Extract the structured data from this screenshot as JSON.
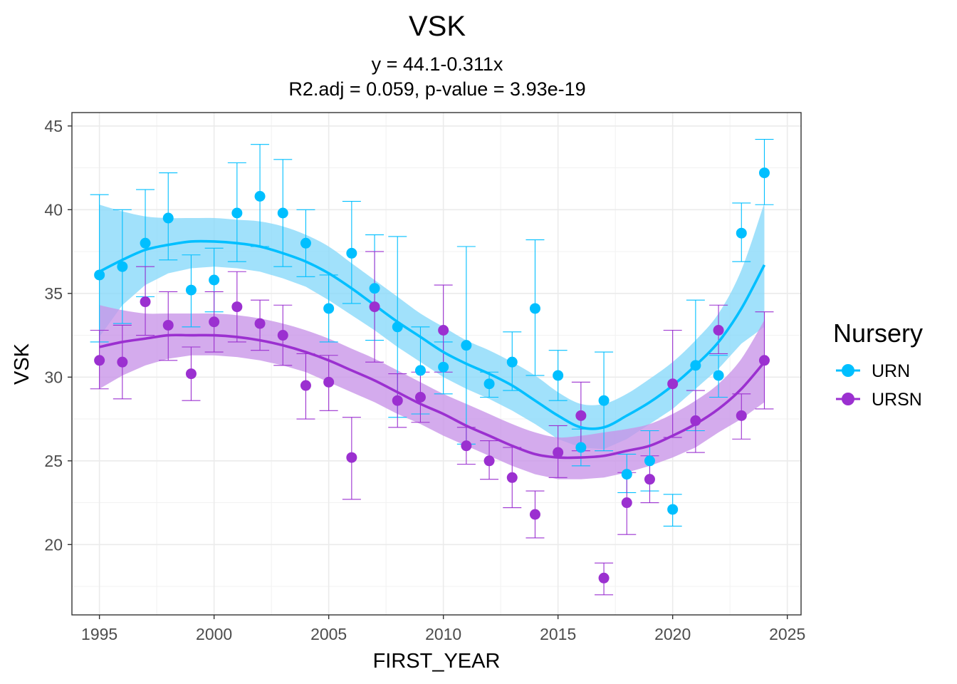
{
  "chart_data": {
    "type": "scatter",
    "title": "VSK",
    "subtitle_lines": [
      "y = 44.1-0.311x",
      "R2.adj = 0.059, p-value = 3.93e-19"
    ],
    "xlabel": "FIRST_YEAR",
    "ylabel": "VSK",
    "xlim": [
      1993.8,
      2025.6
    ],
    "ylim": [
      15.8,
      45.8
    ],
    "x_ticks": [
      1995,
      2000,
      2005,
      2010,
      2015,
      2020,
      2025
    ],
    "y_ticks": [
      20,
      25,
      30,
      35,
      40,
      45
    ],
    "grid": true,
    "legend": {
      "title": "Nursery",
      "placement": "right"
    },
    "series": [
      {
        "name": "URN",
        "color": "#00BFFF",
        "band_color": "#87D8FA",
        "points": [
          {
            "x": 1995,
            "y": 36.1,
            "lo": 32.1,
            "hi": 40.9
          },
          {
            "x": 1996,
            "y": 36.6,
            "lo": 33.2,
            "hi": 40.0
          },
          {
            "x": 1997,
            "y": 38.0,
            "lo": 34.8,
            "hi": 41.2
          },
          {
            "x": 1998,
            "y": 39.5,
            "lo": 37.0,
            "hi": 42.2
          },
          {
            "x": 1999,
            "y": 35.2,
            "lo": 33.0,
            "hi": 37.3
          },
          {
            "x": 2000,
            "y": 35.8,
            "lo": 33.9,
            "hi": 37.7
          },
          {
            "x": 2001,
            "y": 39.8,
            "lo": 36.9,
            "hi": 42.8
          },
          {
            "x": 2002,
            "y": 40.8,
            "lo": 37.8,
            "hi": 43.9
          },
          {
            "x": 2003,
            "y": 39.8,
            "lo": 36.6,
            "hi": 43.0
          },
          {
            "x": 2004,
            "y": 38.0,
            "lo": 36.0,
            "hi": 40.0
          },
          {
            "x": 2005,
            "y": 34.1,
            "lo": 32.1,
            "hi": 36.1
          },
          {
            "x": 2006,
            "y": 37.4,
            "lo": 34.4,
            "hi": 40.5
          },
          {
            "x": 2007,
            "y": 35.3,
            "lo": 32.2,
            "hi": 38.5
          },
          {
            "x": 2008,
            "y": 33.0,
            "lo": 27.6,
            "hi": 38.4
          },
          {
            "x": 2009,
            "y": 30.4,
            "lo": 27.8,
            "hi": 33.0
          },
          {
            "x": 2010,
            "y": 30.6,
            "lo": 29.0,
            "hi": 32.1
          },
          {
            "x": 2011,
            "y": 31.9,
            "lo": 26.0,
            "hi": 37.8
          },
          {
            "x": 2012,
            "y": 29.6,
            "lo": 28.8,
            "hi": 30.3
          },
          {
            "x": 2013,
            "y": 30.9,
            "lo": 29.2,
            "hi": 32.7
          },
          {
            "x": 2014,
            "y": 34.1,
            "lo": 30.1,
            "hi": 38.2
          },
          {
            "x": 2015,
            "y": 30.1,
            "lo": 28.6,
            "hi": 31.6
          },
          {
            "x": 2016,
            "y": 25.8,
            "lo": 24.7,
            "hi": 26.9
          },
          {
            "x": 2017,
            "y": 28.6,
            "lo": 25.6,
            "hi": 31.5
          },
          {
            "x": 2018,
            "y": 24.2,
            "lo": 23.1,
            "hi": 25.4
          },
          {
            "x": 2019,
            "y": 25.0,
            "lo": 23.2,
            "hi": 26.8
          },
          {
            "x": 2020,
            "y": 22.1,
            "lo": 21.1,
            "hi": 23.0
          },
          {
            "x": 2021,
            "y": 30.7,
            "lo": 26.8,
            "hi": 34.6
          },
          {
            "x": 2022,
            "y": 30.1,
            "lo": 28.8,
            "hi": 31.3
          },
          {
            "x": 2023,
            "y": 38.6,
            "lo": 36.9,
            "hi": 40.4
          },
          {
            "x": 2024,
            "y": 42.2,
            "lo": 40.3,
            "hi": 44.2
          }
        ],
        "smooth": [
          {
            "x": 1995,
            "y": 36.3,
            "lo": 32.4,
            "hi": 40.3
          },
          {
            "x": 1996,
            "y": 37.0,
            "lo": 34.3,
            "hi": 39.9
          },
          {
            "x": 1997,
            "y": 37.6,
            "lo": 35.5,
            "hi": 39.6
          },
          {
            "x": 1998,
            "y": 37.9,
            "lo": 36.2,
            "hi": 39.5
          },
          {
            "x": 1999,
            "y": 38.1,
            "lo": 36.5,
            "hi": 39.5
          },
          {
            "x": 2000,
            "y": 38.1,
            "lo": 36.6,
            "hi": 39.5
          },
          {
            "x": 2001,
            "y": 38.0,
            "lo": 36.5,
            "hi": 39.4
          },
          {
            "x": 2002,
            "y": 37.8,
            "lo": 36.3,
            "hi": 39.3
          },
          {
            "x": 2003,
            "y": 37.4,
            "lo": 35.9,
            "hi": 39.0
          },
          {
            "x": 2004,
            "y": 36.9,
            "lo": 35.4,
            "hi": 38.5
          },
          {
            "x": 2005,
            "y": 36.2,
            "lo": 34.6,
            "hi": 37.8
          },
          {
            "x": 2006,
            "y": 35.3,
            "lo": 33.7,
            "hi": 36.8
          },
          {
            "x": 2007,
            "y": 34.3,
            "lo": 32.8,
            "hi": 35.8
          },
          {
            "x": 2008,
            "y": 33.3,
            "lo": 31.8,
            "hi": 34.8
          },
          {
            "x": 2009,
            "y": 32.4,
            "lo": 30.9,
            "hi": 33.8
          },
          {
            "x": 2010,
            "y": 31.5,
            "lo": 30.0,
            "hi": 33.0
          },
          {
            "x": 2011,
            "y": 30.8,
            "lo": 29.3,
            "hi": 32.2
          },
          {
            "x": 2012,
            "y": 30.2,
            "lo": 28.7,
            "hi": 31.6
          },
          {
            "x": 2013,
            "y": 29.5,
            "lo": 28.0,
            "hi": 30.9
          },
          {
            "x": 2014,
            "y": 28.6,
            "lo": 27.2,
            "hi": 30.1
          },
          {
            "x": 2015,
            "y": 27.7,
            "lo": 26.3,
            "hi": 29.1
          },
          {
            "x": 2016,
            "y": 27.0,
            "lo": 25.8,
            "hi": 28.4
          },
          {
            "x": 2017,
            "y": 27.0,
            "lo": 25.7,
            "hi": 28.4
          },
          {
            "x": 2018,
            "y": 27.7,
            "lo": 26.3,
            "hi": 29.0
          },
          {
            "x": 2019,
            "y": 28.5,
            "lo": 27.2,
            "hi": 29.9
          },
          {
            "x": 2020,
            "y": 29.5,
            "lo": 28.1,
            "hi": 30.9
          },
          {
            "x": 2021,
            "y": 30.7,
            "lo": 29.3,
            "hi": 32.2
          },
          {
            "x": 2022,
            "y": 32.1,
            "lo": 30.5,
            "hi": 33.8
          },
          {
            "x": 2023,
            "y": 34.1,
            "lo": 32.0,
            "hi": 36.4
          },
          {
            "x": 2024,
            "y": 36.7,
            "lo": 33.0,
            "hi": 40.4
          }
        ]
      },
      {
        "name": "URSN",
        "color": "#9B30D0",
        "band_color": "#C893E8",
        "points": [
          {
            "x": 1995,
            "y": 31.0,
            "lo": 29.3,
            "hi": 32.8
          },
          {
            "x": 1996,
            "y": 30.9,
            "lo": 28.7,
            "hi": 33.1
          },
          {
            "x": 1997,
            "y": 34.5,
            "lo": 32.5,
            "hi": 36.6
          },
          {
            "x": 1998,
            "y": 33.1,
            "lo": 31.0,
            "hi": 35.1
          },
          {
            "x": 1999,
            "y": 30.2,
            "lo": 28.6,
            "hi": 31.8
          },
          {
            "x": 2000,
            "y": 33.3,
            "lo": 31.5,
            "hi": 35.1
          },
          {
            "x": 2001,
            "y": 34.2,
            "lo": 32.1,
            "hi": 36.3
          },
          {
            "x": 2002,
            "y": 33.2,
            "lo": 31.6,
            "hi": 34.6
          },
          {
            "x": 2003,
            "y": 32.5,
            "lo": 30.7,
            "hi": 34.3
          },
          {
            "x": 2004,
            "y": 29.5,
            "lo": 27.5,
            "hi": 31.4
          },
          {
            "x": 2005,
            "y": 29.7,
            "lo": 28.0,
            "hi": 31.3
          },
          {
            "x": 2006,
            "y": 25.2,
            "lo": 22.7,
            "hi": 27.6
          },
          {
            "x": 2007,
            "y": 34.2,
            "lo": 30.9,
            "hi": 37.5
          },
          {
            "x": 2008,
            "y": 28.6,
            "lo": 27.0,
            "hi": 30.2
          },
          {
            "x": 2009,
            "y": 28.8,
            "lo": 27.3,
            "hi": 30.3
          },
          {
            "x": 2010,
            "y": 32.8,
            "lo": 30.3,
            "hi": 35.5
          },
          {
            "x": 2011,
            "y": 25.9,
            "lo": 24.8,
            "hi": 27.0
          },
          {
            "x": 2012,
            "y": 25.0,
            "lo": 23.9,
            "hi": 26.2
          },
          {
            "x": 2013,
            "y": 24.0,
            "lo": 22.2,
            "hi": 25.8
          },
          {
            "x": 2014,
            "y": 21.8,
            "lo": 20.4,
            "hi": 23.2
          },
          {
            "x": 2015,
            "y": 25.5,
            "lo": 24.0,
            "hi": 27.1
          },
          {
            "x": 2016,
            "y": 27.7,
            "lo": 25.6,
            "hi": 29.7
          },
          {
            "x": 2017,
            "y": 18.0,
            "lo": 17.0,
            "hi": 18.9
          },
          {
            "x": 2018,
            "y": 22.5,
            "lo": 20.6,
            "hi": 24.3
          },
          {
            "x": 2019,
            "y": 23.9,
            "lo": 22.5,
            "hi": 25.3
          },
          {
            "x": 2020,
            "y": 29.6,
            "lo": 26.4,
            "hi": 32.8
          },
          {
            "x": 2021,
            "y": 27.4,
            "lo": 25.5,
            "hi": 29.2
          },
          {
            "x": 2022,
            "y": 32.8,
            "lo": 31.4,
            "hi": 34.3
          },
          {
            "x": 2023,
            "y": 27.7,
            "lo": 26.3,
            "hi": 29.0
          },
          {
            "x": 2024,
            "y": 31.0,
            "lo": 28.1,
            "hi": 33.9
          }
        ],
        "smooth": [
          {
            "x": 1995,
            "y": 31.8,
            "lo": 29.3,
            "hi": 34.3
          },
          {
            "x": 1996,
            "y": 32.1,
            "lo": 30.1,
            "hi": 34.0
          },
          {
            "x": 1997,
            "y": 32.3,
            "lo": 30.7,
            "hi": 33.8
          },
          {
            "x": 1998,
            "y": 32.5,
            "lo": 31.1,
            "hi": 33.8
          },
          {
            "x": 1999,
            "y": 32.5,
            "lo": 31.3,
            "hi": 33.8
          },
          {
            "x": 2000,
            "y": 32.5,
            "lo": 31.3,
            "hi": 33.8
          },
          {
            "x": 2001,
            "y": 32.4,
            "lo": 31.2,
            "hi": 33.7
          },
          {
            "x": 2002,
            "y": 32.2,
            "lo": 31.0,
            "hi": 33.5
          },
          {
            "x": 2003,
            "y": 31.9,
            "lo": 30.7,
            "hi": 33.2
          },
          {
            "x": 2004,
            "y": 31.5,
            "lo": 30.3,
            "hi": 32.8
          },
          {
            "x": 2005,
            "y": 31.0,
            "lo": 29.7,
            "hi": 32.3
          },
          {
            "x": 2006,
            "y": 30.4,
            "lo": 29.1,
            "hi": 31.7
          },
          {
            "x": 2007,
            "y": 29.8,
            "lo": 28.5,
            "hi": 31.1
          },
          {
            "x": 2008,
            "y": 29.1,
            "lo": 27.8,
            "hi": 30.4
          },
          {
            "x": 2009,
            "y": 28.4,
            "lo": 27.2,
            "hi": 29.7
          },
          {
            "x": 2010,
            "y": 27.8,
            "lo": 26.5,
            "hi": 29.0
          },
          {
            "x": 2011,
            "y": 27.1,
            "lo": 25.9,
            "hi": 28.4
          },
          {
            "x": 2012,
            "y": 26.5,
            "lo": 25.3,
            "hi": 27.8
          },
          {
            "x": 2013,
            "y": 25.9,
            "lo": 24.7,
            "hi": 27.2
          },
          {
            "x": 2014,
            "y": 25.4,
            "lo": 24.2,
            "hi": 26.7
          },
          {
            "x": 2015,
            "y": 25.2,
            "lo": 23.9,
            "hi": 26.4
          },
          {
            "x": 2016,
            "y": 25.2,
            "lo": 23.9,
            "hi": 26.5
          },
          {
            "x": 2017,
            "y": 25.3,
            "lo": 24.0,
            "hi": 26.7
          },
          {
            "x": 2018,
            "y": 25.6,
            "lo": 24.3,
            "hi": 26.9
          },
          {
            "x": 2019,
            "y": 25.9,
            "lo": 24.7,
            "hi": 27.2
          },
          {
            "x": 2020,
            "y": 26.5,
            "lo": 25.2,
            "hi": 27.8
          },
          {
            "x": 2021,
            "y": 27.2,
            "lo": 25.8,
            "hi": 28.6
          },
          {
            "x": 2022,
            "y": 28.1,
            "lo": 26.7,
            "hi": 29.6
          },
          {
            "x": 2023,
            "y": 29.3,
            "lo": 27.5,
            "hi": 31.1
          },
          {
            "x": 2024,
            "y": 30.9,
            "lo": 28.5,
            "hi": 33.4
          }
        ]
      }
    ]
  }
}
